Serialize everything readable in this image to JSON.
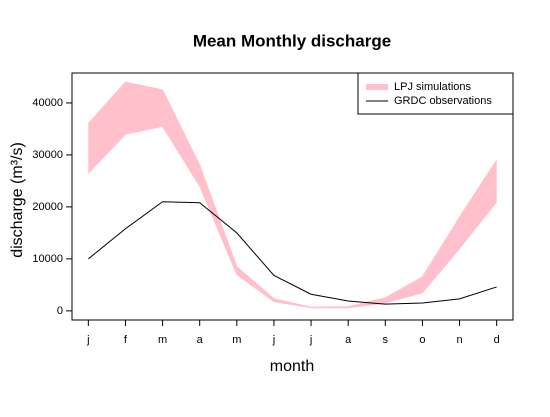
{
  "chart_data": {
    "type": "band-line",
    "title": "Mean Monthly discharge",
    "xlabel": "month",
    "ylabel": "discharge (m³/s)",
    "categories": [
      "j",
      "f",
      "m",
      "a",
      "m",
      "j",
      "j",
      "a",
      "s",
      "o",
      "n",
      "d"
    ],
    "series": [
      {
        "name": "LPJ simulations",
        "color": "#ffc0cb",
        "upper": [
          36000,
          44000,
          42500,
          28000,
          8500,
          2300,
          700,
          800,
          2500,
          6500,
          18000,
          29000
        ],
        "lower": [
          26500,
          34000,
          35500,
          24000,
          7000,
          1800,
          600,
          600,
          1500,
          3500,
          12000,
          21000
        ]
      },
      {
        "name": "GRDC observations",
        "color": "#000000",
        "values": [
          10000,
          15800,
          21000,
          20800,
          15000,
          6800,
          3200,
          1900,
          1300,
          1500,
          2300,
          4600
        ]
      }
    ],
    "ylim": [
      -1760,
      45760
    ],
    "yticks": [
      0,
      10000,
      20000,
      30000,
      40000
    ],
    "legend": "top-right"
  }
}
